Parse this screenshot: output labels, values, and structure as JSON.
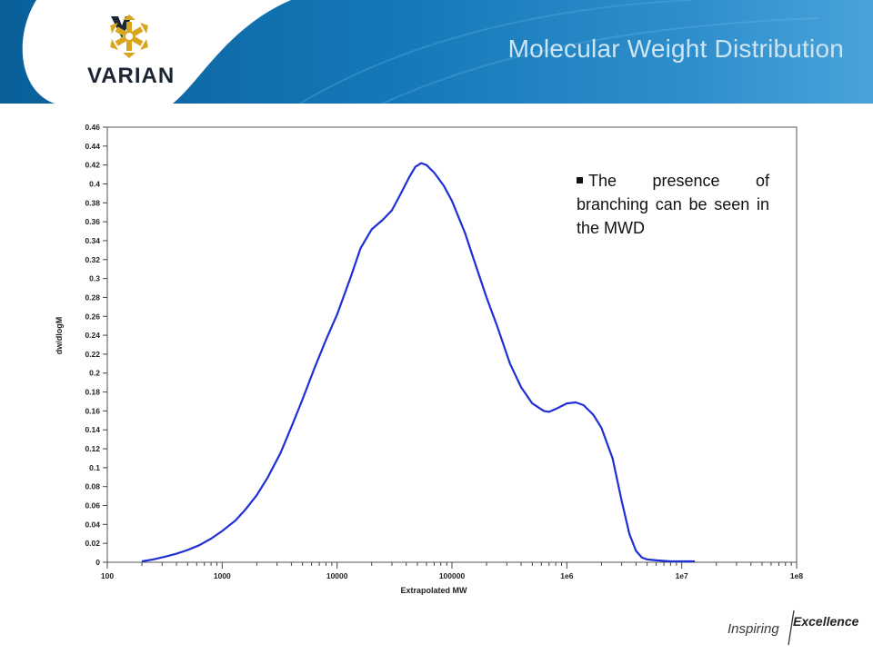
{
  "header": {
    "title": "Molecular Weight Distribution",
    "brand": "VARIAN",
    "logo_icon": "varian-star-logo-icon",
    "colors": {
      "band_dark": "#0a5f98",
      "band_light": "#3d9ad2",
      "title": "#cde4f3",
      "logo_gold": "#d8a51e"
    }
  },
  "note": {
    "text": "The presence of branching can be seen in the MWD"
  },
  "footer": {
    "tagline_part1": "Inspiring",
    "tagline_part2": "Excellence"
  },
  "chart_data": {
    "type": "line",
    "xlabel": "Extrapolated MW",
    "ylabel": "dw/dlogM",
    "x_scale": "log",
    "xlim": [
      100,
      100000000
    ],
    "ylim": [
      0,
      0.46
    ],
    "x_ticks": [
      "100",
      "1000",
      "10000",
      "100000",
      "1e6",
      "1e7",
      "1e8"
    ],
    "y_ticks": [
      "0",
      "0.02",
      "0.04",
      "0.06",
      "0.08",
      "0.1",
      "0.12",
      "0.14",
      "0.16",
      "0.18",
      "0.2",
      "0.22",
      "0.24",
      "0.26",
      "0.28",
      "0.3",
      "0.32",
      "0.34",
      "0.36",
      "0.38",
      "0.4",
      "0.42",
      "0.44",
      "0.46"
    ],
    "grid": false,
    "line_color": "#1f2fd6",
    "series": [
      {
        "x": [
          200,
          250,
          320,
          400,
          500,
          630,
          800,
          1000,
          1300,
          1600,
          2000,
          2500,
          3200,
          4000,
          5000,
          6300,
          8000,
          10000,
          13000,
          16000,
          20000,
          25000,
          30000,
          36000,
          42000,
          48000,
          54000,
          60000,
          70000,
          85000,
          100000,
          130000,
          160000,
          200000,
          250000,
          320000,
          400000,
          500000,
          630000,
          700000,
          800000,
          1000000,
          1200000,
          1400000,
          1700000,
          2000000,
          2500000,
          3000000,
          3500000,
          4000000,
          4500000,
          5000000,
          6000000,
          8000000,
          10000000,
          13000000
        ],
        "y": [
          0.001,
          0.003,
          0.006,
          0.009,
          0.013,
          0.018,
          0.025,
          0.033,
          0.044,
          0.056,
          0.071,
          0.09,
          0.115,
          0.143,
          0.172,
          0.204,
          0.235,
          0.262,
          0.3,
          0.332,
          0.352,
          0.362,
          0.372,
          0.39,
          0.406,
          0.418,
          0.422,
          0.42,
          0.412,
          0.398,
          0.382,
          0.348,
          0.315,
          0.28,
          0.248,
          0.21,
          0.185,
          0.168,
          0.16,
          0.159,
          0.162,
          0.168,
          0.169,
          0.166,
          0.156,
          0.142,
          0.11,
          0.065,
          0.03,
          0.012,
          0.005,
          0.003,
          0.002,
          0.001,
          0.001,
          0.001
        ]
      }
    ]
  }
}
